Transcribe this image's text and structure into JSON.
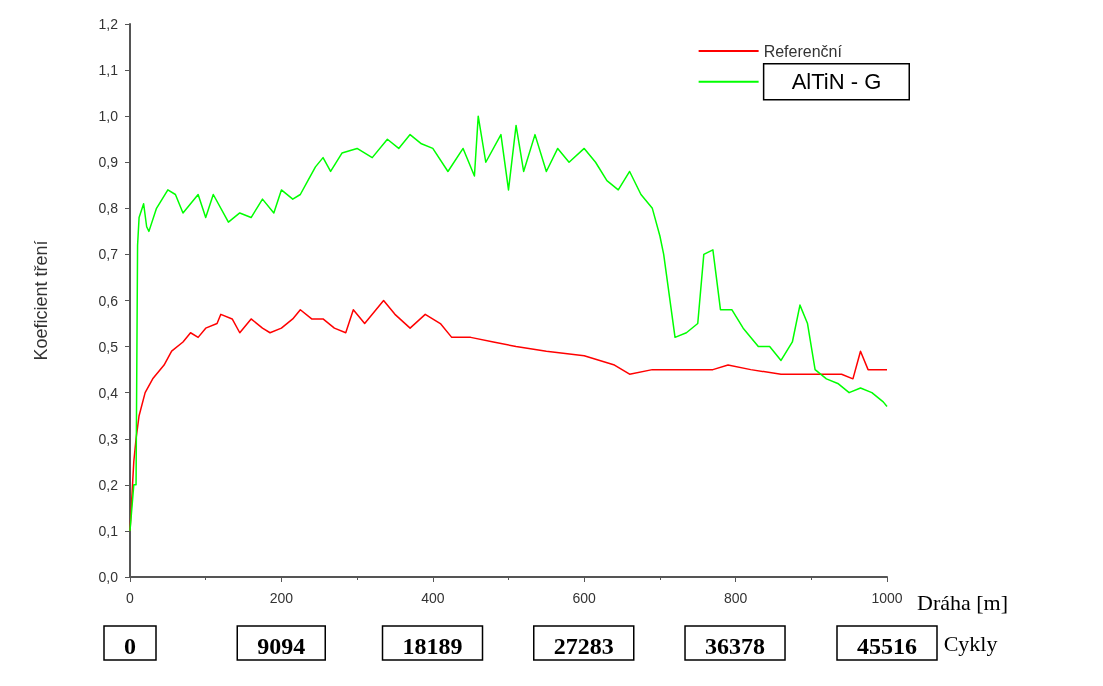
{
  "chart_data": {
    "type": "line",
    "ylabel": "Koeficient tření",
    "xlabel": "Dráha [m]",
    "x2label": "Cykly",
    "xlim": [
      0,
      1000
    ],
    "xticks": [
      0,
      200,
      400,
      600,
      800,
      1000
    ],
    "x2lim": [
      0,
      45516
    ],
    "x2ticks": [
      0,
      9094,
      18189,
      27283,
      36378,
      45516
    ],
    "ylim": [
      0,
      1.2
    ],
    "yticks": [
      {
        "value": 0,
        "label": "0,0"
      },
      {
        "value": 0.1,
        "label": "0,1"
      },
      {
        "value": 0.2,
        "label": "0,2"
      },
      {
        "value": 0.3,
        "label": "0,3"
      },
      {
        "value": 0.4,
        "label": "0,4"
      },
      {
        "value": 0.5,
        "label": "0,5"
      },
      {
        "value": 0.6,
        "label": "0,6"
      },
      {
        "value": 0.7,
        "label": "0,7"
      },
      {
        "value": 0.8,
        "label": "0,8"
      },
      {
        "value": 0.9,
        "label": "0,9"
      },
      {
        "value": 1.0,
        "label": "1,0"
      },
      {
        "value": 1.1,
        "label": "1,1"
      },
      {
        "value": 1.2,
        "label": "1,2"
      }
    ],
    "grid": false,
    "legend": "top right",
    "marker": "none",
    "line_style": "solid",
    "series": [
      {
        "name": "Referenční",
        "color": "#ff0000",
        "x": [
          0,
          5,
          8,
          12,
          20,
          30,
          45,
          55,
          70,
          80,
          90,
          100,
          115,
          120,
          135,
          145,
          160,
          175,
          185,
          200,
          215,
          225,
          240,
          255,
          270,
          285,
          295,
          310,
          335,
          350,
          370,
          390,
          410,
          425,
          450,
          480,
          510,
          550,
          600,
          640,
          660,
          690,
          730,
          770,
          790,
          820,
          860,
          900,
          940,
          955,
          965,
          975,
          990,
          1000
        ],
        "values": [
          0.1,
          0.25,
          0.3,
          0.35,
          0.4,
          0.43,
          0.46,
          0.49,
          0.51,
          0.53,
          0.52,
          0.54,
          0.55,
          0.57,
          0.56,
          0.53,
          0.56,
          0.54,
          0.53,
          0.54,
          0.56,
          0.58,
          0.56,
          0.56,
          0.54,
          0.53,
          0.58,
          0.55,
          0.6,
          0.57,
          0.54,
          0.57,
          0.55,
          0.52,
          0.52,
          0.51,
          0.5,
          0.49,
          0.48,
          0.46,
          0.44,
          0.45,
          0.45,
          0.45,
          0.46,
          0.45,
          0.44,
          0.44,
          0.44,
          0.43,
          0.49,
          0.45,
          0.45,
          0.45
        ]
      },
      {
        "name": "AlTiN - G",
        "color": "#00ff00",
        "x": [
          0,
          5,
          8,
          10,
          12,
          18,
          22,
          25,
          35,
          50,
          60,
          70,
          90,
          100,
          110,
          130,
          145,
          160,
          175,
          190,
          200,
          215,
          225,
          235,
          245,
          255,
          265,
          280,
          300,
          320,
          340,
          355,
          370,
          385,
          400,
          420,
          440,
          455,
          460,
          470,
          490,
          500,
          510,
          520,
          535,
          550,
          565,
          580,
          600,
          615,
          630,
          645,
          660,
          675,
          690,
          700,
          705,
          720,
          735,
          750,
          758,
          770,
          780,
          795,
          810,
          830,
          845,
          860,
          875,
          885,
          895,
          905,
          920,
          935,
          950,
          965,
          980,
          995,
          1000
        ],
        "values": [
          0.1,
          0.2,
          0.2,
          0.72,
          0.78,
          0.81,
          0.76,
          0.75,
          0.8,
          0.84,
          0.83,
          0.79,
          0.83,
          0.78,
          0.83,
          0.77,
          0.79,
          0.78,
          0.82,
          0.79,
          0.84,
          0.82,
          0.83,
          0.86,
          0.89,
          0.91,
          0.88,
          0.92,
          0.93,
          0.91,
          0.95,
          0.93,
          0.96,
          0.94,
          0.93,
          0.88,
          0.93,
          0.87,
          1.0,
          0.9,
          0.96,
          0.84,
          0.98,
          0.88,
          0.96,
          0.88,
          0.93,
          0.9,
          0.93,
          0.9,
          0.86,
          0.84,
          0.88,
          0.83,
          0.8,
          0.74,
          0.7,
          0.52,
          0.53,
          0.55,
          0.7,
          0.71,
          0.58,
          0.58,
          0.54,
          0.5,
          0.5,
          0.47,
          0.51,
          0.59,
          0.55,
          0.45,
          0.43,
          0.42,
          0.4,
          0.41,
          0.4,
          0.38,
          0.37
        ]
      }
    ]
  }
}
